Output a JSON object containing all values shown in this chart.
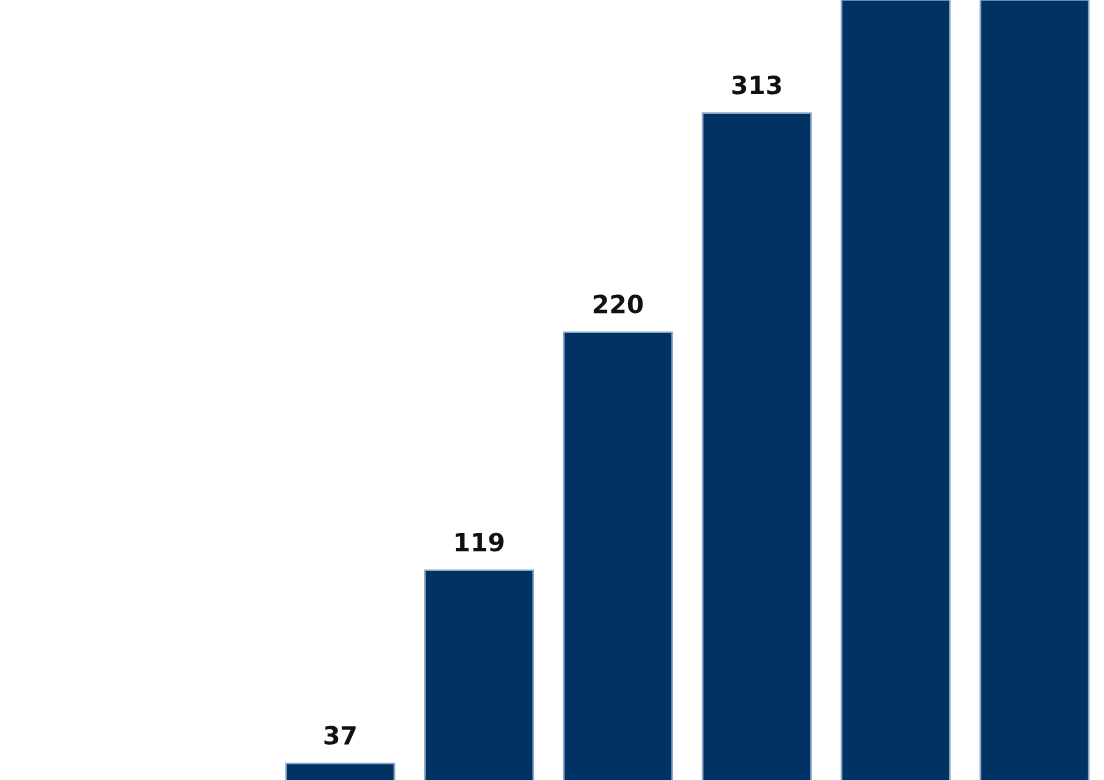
{
  "chart_data": {
    "type": "bar",
    "categories": [
      null,
      null,
      null,
      null,
      null,
      null
    ],
    "values": [
      37,
      119,
      220,
      313,
      361,
      361
    ],
    "value_labels": [
      "37",
      "119",
      "220",
      "313",
      null,
      null
    ],
    "color": "#003263",
    "ylim": [
      30,
      361
    ],
    "grid": false
  }
}
